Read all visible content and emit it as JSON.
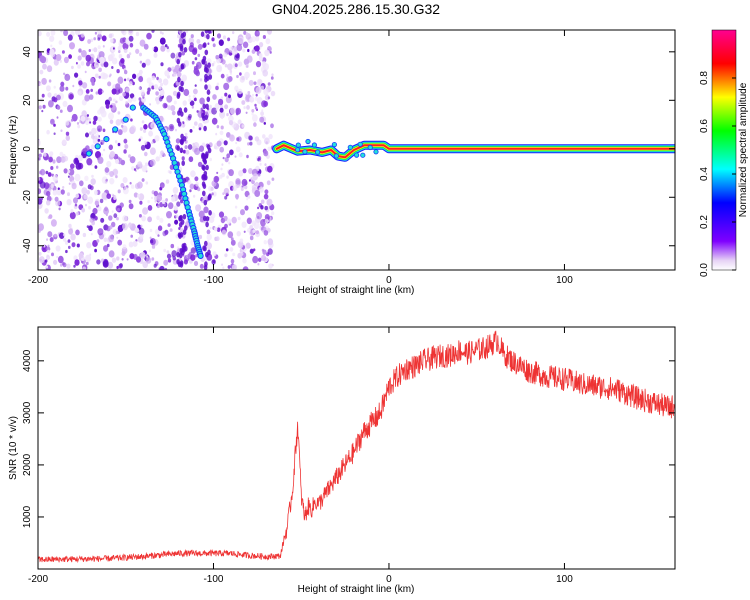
{
  "title": "GN04.2025.286.15.30.G32",
  "chart_data": [
    {
      "type": "heatmap",
      "name": "spectrogram",
      "xlabel": "Height of straight line (km)",
      "ylabel": "Frequency (Hz)",
      "xlim": [
        -200,
        163
      ],
      "ylim": [
        -50,
        49
      ],
      "xticks": [
        -200,
        -100,
        0,
        100
      ],
      "yticks": [
        -40,
        -20,
        0,
        20,
        40
      ],
      "noise_region_x": [
        -200,
        -66
      ],
      "ridge_curve": {
        "x": [
          -140,
          -133,
          -128,
          -123,
          -118,
          -114,
          -111,
          -109,
          -107
        ],
        "y": [
          17,
          13,
          6,
          -4,
          -15,
          -26,
          -34,
          -40,
          -45
        ]
      },
      "branch_points": {
        "x": [
          -171,
          -166,
          -161,
          -156,
          -150,
          -146
        ],
        "y": [
          -2,
          1,
          4,
          8,
          12,
          17
        ]
      },
      "carrier_line": {
        "x": [
          -64,
          -60,
          -52,
          -45,
          -38,
          -33,
          -29,
          -25,
          -20,
          -14,
          -8,
          -3,
          0,
          163
        ],
        "y": [
          0,
          1.5,
          -1,
          -0.5,
          -1.5,
          -0.5,
          -3,
          -3.5,
          -0.5,
          1.5,
          1.5,
          1.5,
          0,
          0
        ]
      },
      "colorbar": {
        "label": "Normalized spectral amplitude",
        "range": [
          0.0,
          1.0
        ],
        "ticks": [
          "0.0",
          "0.2",
          "0.4",
          "0.6",
          "0.8"
        ],
        "tick_values": [
          0.0,
          0.2,
          0.4,
          0.6,
          0.8
        ]
      }
    },
    {
      "type": "line",
      "name": "snr",
      "xlabel": "Height of straight line (km)",
      "ylabel": "SNR (10 * v/v)",
      "xlim": [
        -200,
        163
      ],
      "ylim": [
        0,
        4650
      ],
      "xticks": [
        -200,
        -100,
        0,
        100
      ],
      "yticks": [
        1000,
        2000,
        3000,
        4000
      ],
      "color": "#ee3333",
      "series": [
        {
          "name": "SNR",
          "x": [
            -200,
            -180,
            -160,
            -140,
            -120,
            -100,
            -90,
            -80,
            -70,
            -62,
            -58,
            -55,
            -52,
            -50,
            -48,
            -46,
            -44,
            -42,
            -40,
            -35,
            -30,
            -25,
            -20,
            -15,
            -10,
            -5,
            0,
            5,
            10,
            15,
            20,
            25,
            30,
            35,
            40,
            45,
            50,
            55,
            60,
            62,
            65,
            70,
            80,
            90,
            100,
            110,
            120,
            130,
            140,
            150,
            160,
            163
          ],
          "values": [
            180,
            190,
            200,
            240,
            300,
            300,
            300,
            260,
            240,
            250,
            800,
            1500,
            2800,
            1400,
            1000,
            1200,
            1150,
            1300,
            1250,
            1500,
            1750,
            2000,
            2250,
            2600,
            2800,
            3000,
            3500,
            3700,
            3850,
            3900,
            4000,
            4050,
            4100,
            4100,
            4200,
            4150,
            4200,
            4250,
            4350,
            4400,
            4150,
            4000,
            3800,
            3700,
            3650,
            3550,
            3500,
            3450,
            3300,
            3200,
            3100,
            3150
          ],
          "noise_amplitude": 230
        }
      ]
    }
  ]
}
